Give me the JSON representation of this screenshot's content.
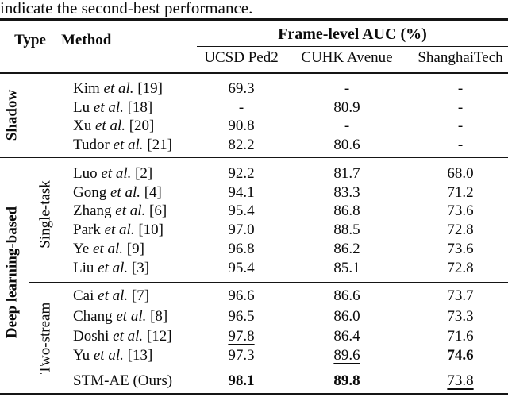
{
  "caption": "indicate the second-best performance.",
  "header": {
    "type_label": "Type",
    "method_label": "Method",
    "auc_label": "Frame-level AUC (%)",
    "datasets": [
      "UCSD Ped2",
      "CUHK Avenue",
      "ShanghaiTech"
    ]
  },
  "groups": [
    {
      "id": "shadow",
      "type_label": "Shadow",
      "subgroups": [
        {
          "id": "shadow-methods",
          "subtype_label": "",
          "rows": [
            {
              "method": {
                "name": "Kim",
                "etal": "et al.",
                "ref": "[19]"
              },
              "values": [
                {
                  "text": "69.3",
                  "style": "normal"
                },
                {
                  "text": "-",
                  "style": "normal"
                },
                {
                  "text": "-",
                  "style": "normal"
                }
              ]
            },
            {
              "method": {
                "name": "Lu",
                "etal": "et al.",
                "ref": "[18]"
              },
              "values": [
                {
                  "text": "-",
                  "style": "normal"
                },
                {
                  "text": "80.9",
                  "style": "normal"
                },
                {
                  "text": "-",
                  "style": "normal"
                }
              ]
            },
            {
              "method": {
                "name": "Xu",
                "etal": "et al.",
                "ref": "[20]"
              },
              "values": [
                {
                  "text": "90.8",
                  "style": "normal"
                },
                {
                  "text": "-",
                  "style": "normal"
                },
                {
                  "text": "-",
                  "style": "normal"
                }
              ]
            },
            {
              "method": {
                "name": "Tudor",
                "etal": "et al.",
                "ref": "[21]"
              },
              "values": [
                {
                  "text": "82.2",
                  "style": "normal"
                },
                {
                  "text": "80.6",
                  "style": "normal"
                },
                {
                  "text": "-",
                  "style": "normal"
                }
              ]
            }
          ]
        }
      ]
    },
    {
      "id": "deep-learning-based",
      "type_label": "Deep learning-based",
      "subgroups": [
        {
          "id": "single-task",
          "subtype_label": "Single-task",
          "rows": [
            {
              "method": {
                "name": "Luo",
                "etal": "et al.",
                "ref": "[2]"
              },
              "values": [
                {
                  "text": "92.2",
                  "style": "normal"
                },
                {
                  "text": "81.7",
                  "style": "normal"
                },
                {
                  "text": "68.0",
                  "style": "normal"
                }
              ]
            },
            {
              "method": {
                "name": "Gong",
                "etal": "et al.",
                "ref": "[4]"
              },
              "values": [
                {
                  "text": "94.1",
                  "style": "normal"
                },
                {
                  "text": "83.3",
                  "style": "normal"
                },
                {
                  "text": "71.2",
                  "style": "normal"
                }
              ]
            },
            {
              "method": {
                "name": "Zhang",
                "etal": "et al.",
                "ref": "[6]"
              },
              "values": [
                {
                  "text": "95.4",
                  "style": "normal"
                },
                {
                  "text": "86.8",
                  "style": "normal"
                },
                {
                  "text": "73.6",
                  "style": "normal"
                }
              ]
            },
            {
              "method": {
                "name": "Park",
                "etal": "et al.",
                "ref": "[10]"
              },
              "values": [
                {
                  "text": "97.0",
                  "style": "normal"
                },
                {
                  "text": "88.5",
                  "style": "normal"
                },
                {
                  "text": "72.8",
                  "style": "normal"
                }
              ]
            },
            {
              "method": {
                "name": "Ye",
                "etal": "et al.",
                "ref": "[9]"
              },
              "values": [
                {
                  "text": "96.8",
                  "style": "normal"
                },
                {
                  "text": "86.2",
                  "style": "normal"
                },
                {
                  "text": "73.6",
                  "style": "normal"
                }
              ]
            },
            {
              "method": {
                "name": "Liu",
                "etal": "et al.",
                "ref": "[3]"
              },
              "values": [
                {
                  "text": "95.4",
                  "style": "normal"
                },
                {
                  "text": "85.1",
                  "style": "normal"
                },
                {
                  "text": "72.8",
                  "style": "normal"
                }
              ]
            }
          ]
        },
        {
          "id": "two-stream",
          "subtype_label": "Two-stream",
          "rows": [
            {
              "method": {
                "name": "Cai",
                "etal": "et al.",
                "ref": "[7]"
              },
              "values": [
                {
                  "text": "96.6",
                  "style": "normal"
                },
                {
                  "text": "86.6",
                  "style": "normal"
                },
                {
                  "text": "73.7",
                  "style": "normal"
                }
              ]
            },
            {
              "method": {
                "name": "Chang",
                "etal": "et al.",
                "ref": "[8]"
              },
              "values": [
                {
                  "text": "96.5",
                  "style": "normal"
                },
                {
                  "text": "86.0",
                  "style": "normal"
                },
                {
                  "text": "73.3",
                  "style": "normal"
                }
              ]
            },
            {
              "method": {
                "name": "Doshi",
                "etal": "et al.",
                "ref": "[12]"
              },
              "values": [
                {
                  "text": "97.8",
                  "style": "underline"
                },
                {
                  "text": "86.4",
                  "style": "normal"
                },
                {
                  "text": "71.6",
                  "style": "normal"
                }
              ]
            },
            {
              "method": {
                "name": "Yu",
                "etal": "et al.",
                "ref": "[13]"
              },
              "values": [
                {
                  "text": "97.3",
                  "style": "normal"
                },
                {
                  "text": "89.6",
                  "style": "underline"
                },
                {
                  "text": "74.6",
                  "style": "bold"
                }
              ]
            }
          ]
        },
        {
          "id": "ours",
          "subtype_label": "",
          "rows": [
            {
              "method": {
                "name": "STM-AE (Ours)",
                "etal": "",
                "ref": ""
              },
              "values": [
                {
                  "text": "98.1",
                  "style": "bold"
                },
                {
                  "text": "89.8",
                  "style": "bold"
                },
                {
                  "text": "73.8",
                  "style": "underline"
                }
              ]
            }
          ]
        }
      ]
    }
  ]
}
